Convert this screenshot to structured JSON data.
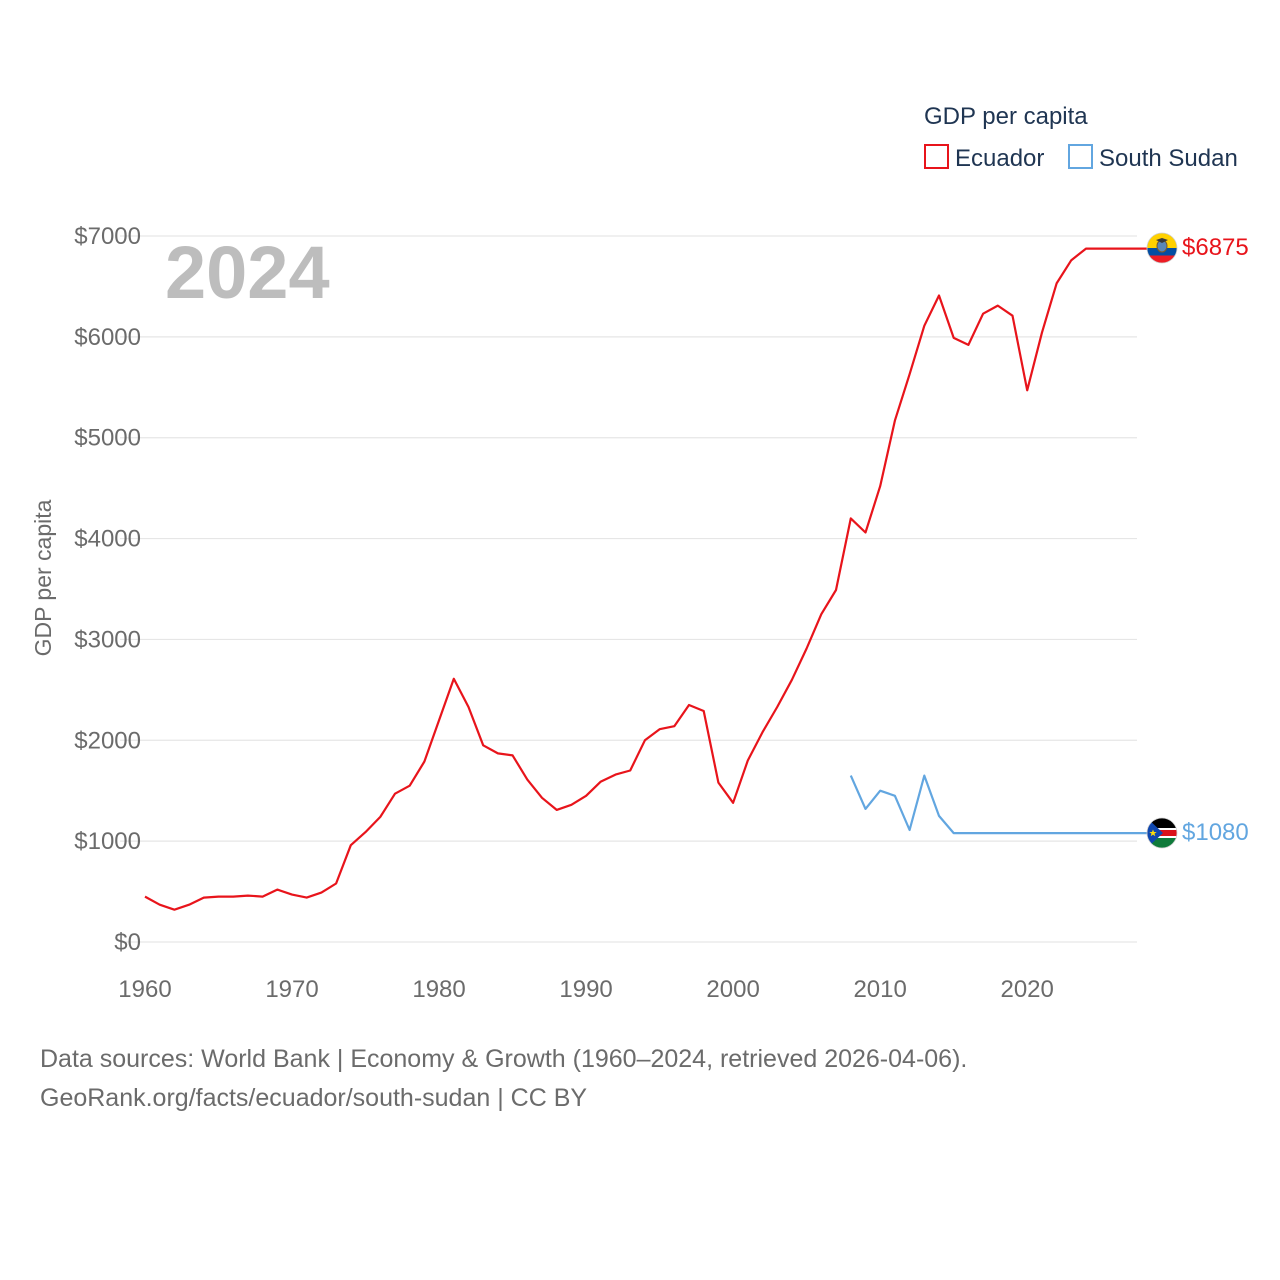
{
  "chart_data": {
    "type": "line",
    "legend_title": "GDP per capita",
    "ylabel": "GDP per capita",
    "xlabel": "",
    "year_overlay": "2024",
    "xlim": [
      1960,
      2024
    ],
    "ylim": [
      0,
      7000
    ],
    "x_ticks": [
      1960,
      1970,
      1980,
      1990,
      2000,
      2010,
      2020
    ],
    "x_tick_labels": [
      "1960",
      "1970",
      "1980",
      "1990",
      "2000",
      "2010",
      "2020"
    ],
    "y_ticks": [
      0,
      1000,
      2000,
      3000,
      4000,
      5000,
      6000,
      7000
    ],
    "y_tick_labels": [
      "$0",
      "$1000",
      "$2000",
      "$3000",
      "$4000",
      "$5000",
      "$6000",
      "$7000"
    ],
    "grid": true,
    "legend_position": "top-right",
    "series": [
      {
        "name": "Ecuador",
        "color": "#e8141b",
        "end_label": "$6875",
        "flag_icon": "ecuador-flag-icon",
        "x": [
          1960,
          1961,
          1962,
          1963,
          1964,
          1965,
          1966,
          1967,
          1968,
          1969,
          1970,
          1971,
          1972,
          1973,
          1974,
          1975,
          1976,
          1977,
          1978,
          1979,
          1980,
          1981,
          1982,
          1983,
          1984,
          1985,
          1986,
          1987,
          1988,
          1989,
          1990,
          1991,
          1992,
          1993,
          1994,
          1995,
          1996,
          1997,
          1998,
          1999,
          2000,
          2001,
          2002,
          2003,
          2004,
          2005,
          2006,
          2007,
          2008,
          2009,
          2010,
          2011,
          2012,
          2013,
          2014,
          2015,
          2016,
          2017,
          2018,
          2019,
          2020,
          2021,
          2022,
          2023,
          2024
        ],
        "values": [
          450,
          370,
          320,
          370,
          440,
          450,
          450,
          460,
          450,
          520,
          470,
          440,
          490,
          580,
          960,
          1090,
          1240,
          1470,
          1550,
          1790,
          2200,
          2610,
          2330,
          1950,
          1870,
          1850,
          1610,
          1430,
          1310,
          1360,
          1450,
          1590,
          1660,
          1700,
          2000,
          2110,
          2140,
          2350,
          2290,
          1580,
          1380,
          1800,
          2080,
          2330,
          2600,
          2910,
          3250,
          3490,
          4200,
          4060,
          4520,
          5170,
          5630,
          6110,
          6410,
          5990,
          5920,
          6230,
          6310,
          6210,
          5470,
          6040,
          6530,
          6760,
          6875
        ]
      },
      {
        "name": "South Sudan",
        "color": "#62a6e0",
        "end_label": "$1080",
        "flag_icon": "south-sudan-flag-icon",
        "x": [
          2008,
          2009,
          2010,
          2011,
          2012,
          2013,
          2014,
          2015,
          2016,
          2017,
          2018,
          2019,
          2020,
          2021,
          2022,
          2023,
          2024
        ],
        "values": [
          1650,
          1320,
          1500,
          1450,
          1110,
          1650,
          1250,
          1080,
          1080,
          1080,
          1080,
          1080,
          1080,
          1080,
          1080,
          1080,
          1080
        ]
      }
    ]
  },
  "footer": {
    "line1": "Data sources: World Bank | Economy & Growth (1960–2024, retrieved 2026-04-06).",
    "line2": "GeoRank.org/facts/ecuador/south-sudan | CC BY"
  }
}
